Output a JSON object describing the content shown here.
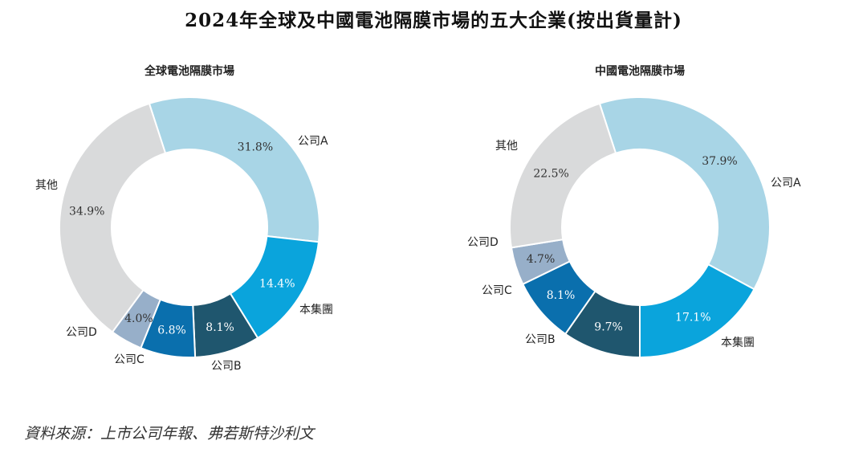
{
  "title": "2024年全球及中國電池隔膜市場的五大企業(按出貨量計)",
  "source": "資料來源：上市公司年報、弗若斯特沙利文",
  "colors": {
    "company_a": "#a8d5e6",
    "our_group": "#0aa4dc",
    "company_b": "#1f566e",
    "company_c": "#0a6fad",
    "company_d": "#97afc9",
    "others": "#d9dadb"
  },
  "chart_data": [
    {
      "type": "pie",
      "variant": "donut",
      "title": "全球電池隔膜市場",
      "slices": [
        {
          "label": "公司A",
          "value": 31.8,
          "display": "31.8%",
          "color": "#a8d5e6",
          "text_color": "#333333"
        },
        {
          "label": "本集團",
          "value": 14.4,
          "display": "14.4%",
          "color": "#0aa4dc",
          "text_color": "#ffffff"
        },
        {
          "label": "公司B",
          "value": 8.1,
          "display": "8.1%",
          "color": "#1f566e",
          "text_color": "#ffffff"
        },
        {
          "label": "公司C",
          "value": 6.8,
          "display": "6.8%",
          "color": "#0a6fad",
          "text_color": "#ffffff"
        },
        {
          "label": "公司D",
          "value": 4.0,
          "display": "4.0%",
          "color": "#97afc9",
          "text_color": "#333333"
        },
        {
          "label": "其他",
          "value": 34.9,
          "display": "34.9%",
          "color": "#d9dadb",
          "text_color": "#333333"
        }
      ]
    },
    {
      "type": "pie",
      "variant": "donut",
      "title": "中國電池隔膜市場",
      "slices": [
        {
          "label": "公司A",
          "value": 37.9,
          "display": "37.9%",
          "color": "#a8d5e6",
          "text_color": "#333333"
        },
        {
          "label": "本集團",
          "value": 17.1,
          "display": "17.1%",
          "color": "#0aa4dc",
          "text_color": "#ffffff"
        },
        {
          "label": "公司B",
          "value": 9.7,
          "display": "9.7%",
          "color": "#1f566e",
          "text_color": "#ffffff"
        },
        {
          "label": "公司C",
          "value": 8.1,
          "display": "8.1%",
          "color": "#0a6fad",
          "text_color": "#ffffff"
        },
        {
          "label": "公司D",
          "value": 4.7,
          "display": "4.7%",
          "color": "#97afc9",
          "text_color": "#333333"
        },
        {
          "label": "其他",
          "value": 22.5,
          "display": "22.5%",
          "color": "#d9dadb",
          "text_color": "#333333"
        }
      ]
    }
  ]
}
